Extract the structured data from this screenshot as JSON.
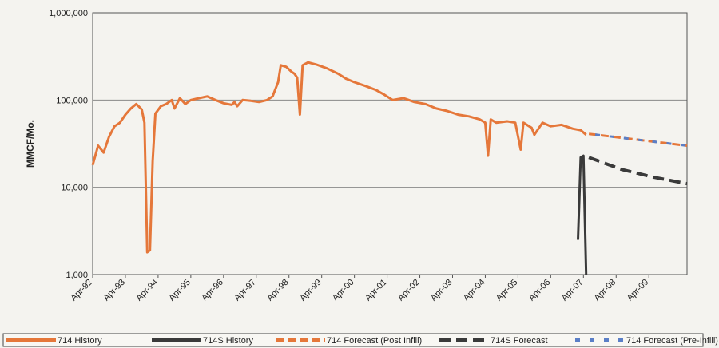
{
  "chart_data": {
    "type": "line",
    "title": "",
    "xlabel": "",
    "ylabel": "MMCF/Mo.",
    "yscale": "log",
    "ylim": [
      1000,
      1000000
    ],
    "y_ticks": [
      "1,000",
      "10,000",
      "100,000",
      "1,000,000"
    ],
    "x_ticks": [
      "Apr-92",
      "Apr-93",
      "Apr-94",
      "Apr-95",
      "Apr-96",
      "Apr-97",
      "Apr-98",
      "Apr-99",
      "Apr-00",
      "Apr-01",
      "Apr-02",
      "Apr-03",
      "Apr-04",
      "Apr-05",
      "Apr-06",
      "Apr-07",
      "Apr-08",
      "Apr-09"
    ],
    "x_range": [
      "1992-04",
      "2010-06"
    ],
    "grid": "horizontal",
    "legend_position": "bottom",
    "colors": {
      "orange": "#e5773a",
      "dark": "#3a3a3a",
      "blue": "#5b7fc7",
      "grid": "#888888"
    },
    "series": [
      {
        "name": "714 History",
        "style": "solid-orange",
        "points": [
          [
            "1992-04",
            18000
          ],
          [
            "1992-06",
            30000
          ],
          [
            "1992-08",
            25000
          ],
          [
            "1992-10",
            38000
          ],
          [
            "1992-12",
            50000
          ],
          [
            "1993-02",
            55000
          ],
          [
            "1993-04",
            68000
          ],
          [
            "1993-06",
            80000
          ],
          [
            "1993-08",
            90000
          ],
          [
            "1993-10",
            78000
          ],
          [
            "1993-11",
            55000
          ],
          [
            "1993-12",
            1800
          ],
          [
            "1994-01",
            1900
          ],
          [
            "1994-02",
            20000
          ],
          [
            "1994-03",
            70000
          ],
          [
            "1994-05",
            85000
          ],
          [
            "1994-07",
            90000
          ],
          [
            "1994-09",
            100000
          ],
          [
            "1994-10",
            80000
          ],
          [
            "1994-12",
            105000
          ],
          [
            "1995-02",
            90000
          ],
          [
            "1995-04",
            100000
          ],
          [
            "1995-07",
            105000
          ],
          [
            "1995-10",
            110000
          ],
          [
            "1996-01",
            100000
          ],
          [
            "1996-04",
            92000
          ],
          [
            "1996-07",
            88000
          ],
          [
            "1996-08",
            95000
          ],
          [
            "1996-09",
            85000
          ],
          [
            "1996-11",
            100000
          ],
          [
            "1997-02",
            98000
          ],
          [
            "1997-05",
            95000
          ],
          [
            "1997-08",
            100000
          ],
          [
            "1997-10",
            110000
          ],
          [
            "1997-12",
            160000
          ],
          [
            "1998-01",
            250000
          ],
          [
            "1998-03",
            240000
          ],
          [
            "1998-05",
            210000
          ],
          [
            "1998-06",
            200000
          ],
          [
            "1998-07",
            180000
          ],
          [
            "1998-08",
            68000
          ],
          [
            "1998-09",
            250000
          ],
          [
            "1998-11",
            270000
          ],
          [
            "1999-02",
            255000
          ],
          [
            "1999-06",
            230000
          ],
          [
            "1999-10",
            200000
          ],
          [
            "2000-01",
            175000
          ],
          [
            "2000-04",
            160000
          ],
          [
            "2000-08",
            145000
          ],
          [
            "2000-12",
            130000
          ],
          [
            "2001-03",
            115000
          ],
          [
            "2001-06",
            100000
          ],
          [
            "2001-10",
            105000
          ],
          [
            "2002-02",
            95000
          ],
          [
            "2002-06",
            90000
          ],
          [
            "2002-10",
            80000
          ],
          [
            "2003-02",
            75000
          ],
          [
            "2003-06",
            68000
          ],
          [
            "2003-10",
            65000
          ],
          [
            "2004-02",
            60000
          ],
          [
            "2004-04",
            55000
          ],
          [
            "2004-05",
            23000
          ],
          [
            "2004-06",
            60000
          ],
          [
            "2004-08",
            55000
          ],
          [
            "2004-12",
            57000
          ],
          [
            "2005-03",
            55000
          ],
          [
            "2005-05",
            27000
          ],
          [
            "2005-06",
            55000
          ],
          [
            "2005-09",
            48000
          ],
          [
            "2005-10",
            40000
          ],
          [
            "2006-01",
            55000
          ],
          [
            "2006-04",
            50000
          ],
          [
            "2006-08",
            52000
          ],
          [
            "2006-12",
            47000
          ],
          [
            "2007-03",
            45000
          ],
          [
            "2007-05",
            40000
          ]
        ]
      },
      {
        "name": "714S History",
        "style": "solid-dark",
        "points": [
          [
            "2007-02",
            2500
          ],
          [
            "2007-03",
            22000
          ],
          [
            "2007-04",
            23000
          ],
          [
            "2007-05",
            1000
          ]
        ]
      },
      {
        "name": "714 Forecast (Post Infill)",
        "style": "dashed-orange",
        "points": [
          [
            "2007-06",
            41000
          ],
          [
            "2010-06",
            30000
          ]
        ]
      },
      {
        "name": "714S Forecast",
        "style": "dashed-dark",
        "points": [
          [
            "2007-06",
            22000
          ],
          [
            "2008-06",
            16000
          ],
          [
            "2009-06",
            13000
          ],
          [
            "2010-06",
            11000
          ]
        ]
      },
      {
        "name": "714 Forecast (Pre-Infill)",
        "style": "dashed-blue",
        "points": [
          [
            "2007-06",
            41000
          ],
          [
            "2010-06",
            30000
          ]
        ]
      }
    ]
  }
}
